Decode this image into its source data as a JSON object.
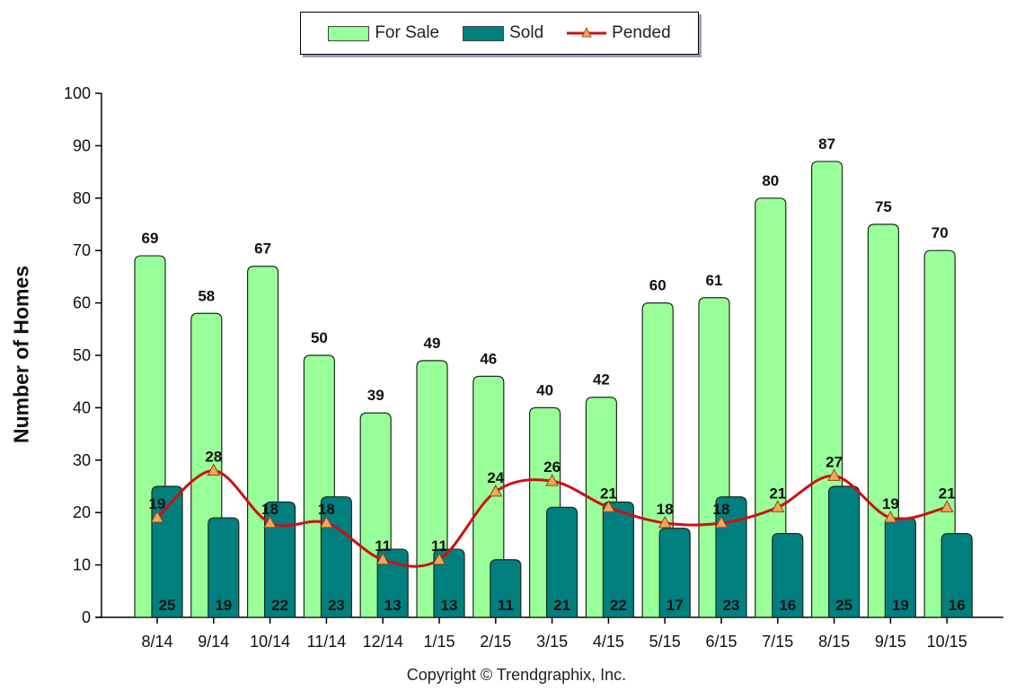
{
  "colors": {
    "for_sale": "#99ff99",
    "sold": "#007f7f",
    "pended": "#cc1111",
    "marker_fill": "#f5a65b"
  },
  "legend": {
    "for_sale": "For Sale",
    "sold": "Sold",
    "pended": "Pended"
  },
  "footer": "Copyright © Trendgraphix, Inc.",
  "chart_data": {
    "type": "bar",
    "title": "",
    "ylabel": "Number of Homes",
    "xlabel": "",
    "ylim": [
      0,
      100
    ],
    "yticks": [
      0,
      10,
      20,
      30,
      40,
      50,
      60,
      70,
      80,
      90,
      100
    ],
    "categories": [
      "8/14",
      "9/14",
      "10/14",
      "11/14",
      "12/14",
      "1/15",
      "2/15",
      "3/15",
      "4/15",
      "5/15",
      "6/15",
      "7/15",
      "8/15",
      "9/15",
      "10/15"
    ],
    "series": [
      {
        "name": "For Sale",
        "kind": "bar",
        "values": [
          69,
          58,
          67,
          50,
          39,
          49,
          46,
          40,
          42,
          60,
          61,
          80,
          87,
          75,
          70
        ]
      },
      {
        "name": "Sold",
        "kind": "bar",
        "values": [
          25,
          19,
          22,
          23,
          13,
          13,
          11,
          21,
          22,
          17,
          23,
          16,
          25,
          19,
          16
        ]
      },
      {
        "name": "Pended",
        "kind": "line",
        "values": [
          19,
          28,
          18,
          18,
          11,
          11,
          24,
          26,
          21,
          18,
          18,
          21,
          27,
          19,
          21
        ]
      }
    ],
    "legend_position": "top-center",
    "grid": false
  }
}
